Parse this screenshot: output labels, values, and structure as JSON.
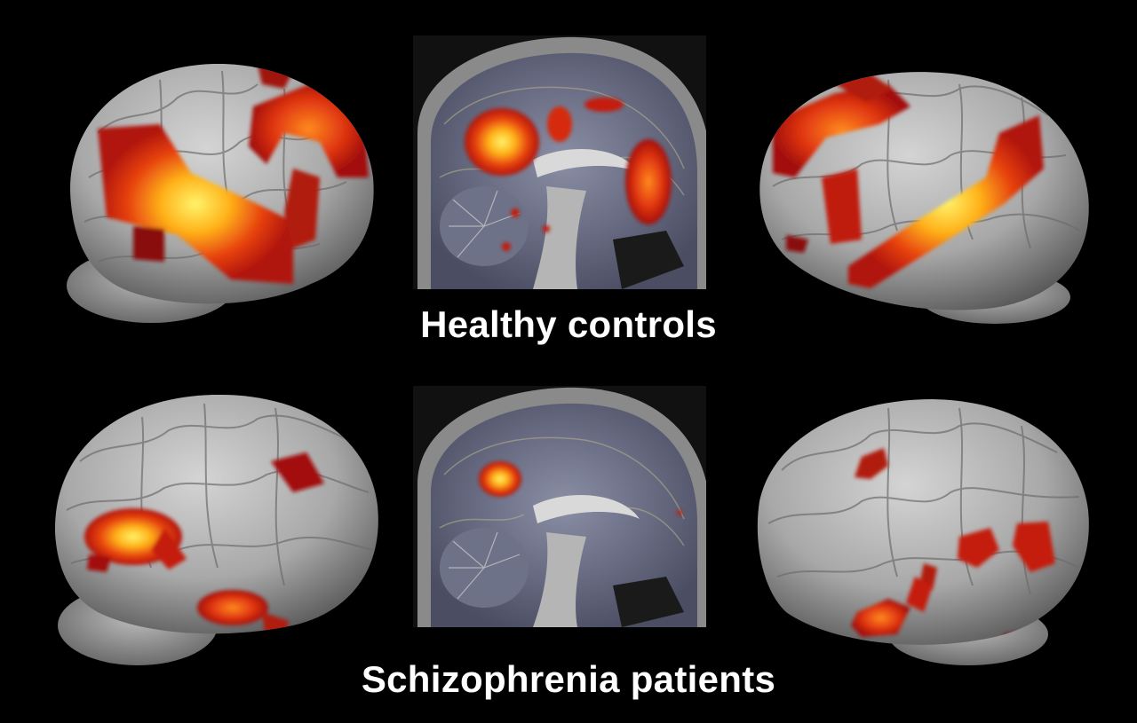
{
  "groups": [
    {
      "label": "Healthy controls"
    },
    {
      "label": "Schizophrenia patients"
    }
  ],
  "colors": {
    "background": "#000000",
    "brain_surface": "#b3b3b3",
    "activation_low": "#8a0a0a",
    "activation_mid": "#e83214",
    "activation_high": "#ffe23a",
    "label_text": "#ffffff"
  },
  "views": [
    "left-lateral-brain",
    "sagittal-slice",
    "right-lateral-brain"
  ]
}
